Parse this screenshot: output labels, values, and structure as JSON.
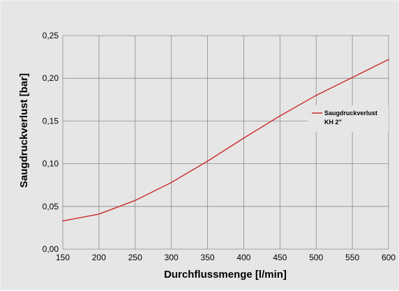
{
  "chart_data": {
    "type": "line",
    "xlabel": "Durchflussmenge [l/min]",
    "ylabel": "Saugdruckverlust [bar]",
    "xlim": [
      150,
      600
    ],
    "ylim": [
      0,
      0.25
    ],
    "x_ticks": [
      "150",
      "200",
      "250",
      "300",
      "350",
      "400",
      "450",
      "500",
      "550",
      "600"
    ],
    "y_ticks": [
      "0,00",
      "0,05",
      "0,10",
      "0,15",
      "0,20",
      "0,25"
    ],
    "grid": true,
    "legend_position": "right",
    "series": [
      {
        "name": "Saugdruckverlust KH 2\"",
        "name_lines": [
          "Saugdruckverlust",
          "KH 2\""
        ],
        "color": "#cc2a2a",
        "x": [
          150,
          200,
          250,
          300,
          350,
          400,
          450,
          500,
          550,
          600
        ],
        "y": [
          0.033,
          0.041,
          0.057,
          0.078,
          0.103,
          0.13,
          0.156,
          0.18,
          0.201,
          0.222
        ]
      }
    ]
  }
}
